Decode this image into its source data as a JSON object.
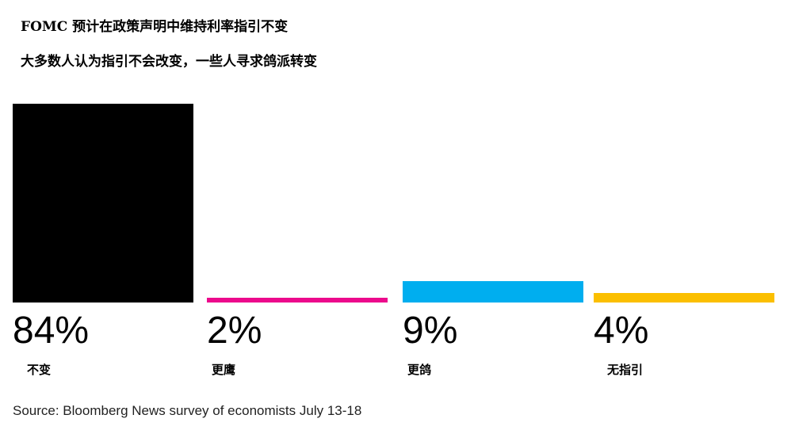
{
  "chart_data": {
    "type": "bar",
    "title": "FOMC 预计在政策声明中维持利率指引不变",
    "subtitle": "大多数人认为指引不会改变，一些人寻求鸽派转变",
    "categories": [
      "不变",
      "更鹰",
      "更鸽",
      "无指引"
    ],
    "values": [
      84,
      2,
      9,
      4
    ],
    "value_labels": [
      "84%",
      "2%",
      "9%",
      "4%"
    ],
    "colors": [
      "#000000",
      "#ec0a8c",
      "#00aeef",
      "#fbbf00"
    ],
    "ylim": [
      0,
      84
    ],
    "grid": false,
    "source": "Source: Bloomberg News survey of economists July 13-18"
  }
}
